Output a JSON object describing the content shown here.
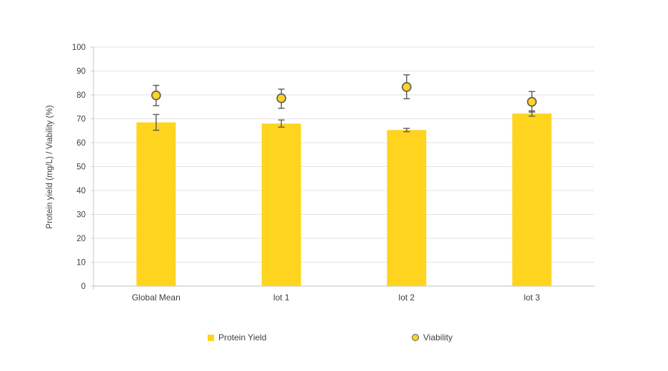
{
  "chart_data": {
    "type": "bar",
    "title": "",
    "categories": [
      "Global Mean",
      "lot 1",
      "lot 2",
      "lot 3"
    ],
    "series": [
      {
        "name": "Protein Yield",
        "type": "bar",
        "values": [
          68.5,
          68.0,
          65.3,
          72.2
        ],
        "error_plus": [
          3.3,
          1.5,
          0.7,
          1.1
        ],
        "error_minus": [
          3.3,
          1.5,
          0.7,
          1.1
        ]
      },
      {
        "name": "Viability",
        "type": "scatter",
        "values": [
          79.8,
          78.6,
          83.3,
          77.1
        ],
        "error_plus": [
          4.2,
          3.8,
          5.1,
          4.3
        ],
        "error_minus": [
          4.3,
          4.2,
          4.9,
          4.3
        ]
      }
    ],
    "xlabel": "",
    "ylabel": "Protein yield (mg/L) / Viability (%)",
    "ylim": [
      0,
      100
    ],
    "ytick_step": 10,
    "ytick_labels": [
      "0",
      "10",
      "20",
      "30",
      "40",
      "50",
      "60",
      "70",
      "80",
      "90",
      "100"
    ],
    "grid": true,
    "legend_position": "bottom"
  },
  "colors": {
    "bar_fill": "#FFD41E",
    "marker_fill": "#FFD41E",
    "marker_outline": "#595959",
    "error_bar": "#595959",
    "gridline": "#E2E2E2",
    "axis_line": "#C9C9C9",
    "text": "#3F3F3F",
    "background": "#FFFFFF"
  }
}
